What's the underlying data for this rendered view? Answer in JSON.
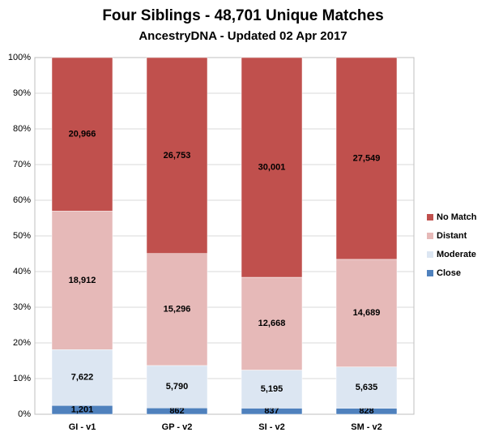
{
  "chart_data": {
    "type": "stacked_percent_bar",
    "title": "Four Siblings -  48,701 Unique Matches",
    "subtitle": "AncestryDNA - Updated 02 Apr 2017",
    "categories": [
      "GI - v1",
      "GP - v2",
      "SI - v2",
      "SM - v2"
    ],
    "series": [
      {
        "name": "Close",
        "color": "#4f81bd",
        "values": [
          1201,
          862,
          837,
          828
        ],
        "value_labels": [
          "1,201",
          "862",
          "837",
          "828"
        ]
      },
      {
        "name": "Moderate",
        "color": "#dce6f2",
        "values": [
          7622,
          5790,
          5195,
          5635
        ],
        "value_labels": [
          "7,622",
          "5,790",
          "5,195",
          "5,635"
        ]
      },
      {
        "name": "Distant",
        "color": "#e6b9b8",
        "values": [
          18912,
          15296,
          12668,
          14689
        ],
        "value_labels": [
          "18,912",
          "15,296",
          "12,668",
          "14,689"
        ]
      },
      {
        "name": "No Match",
        "color": "#c0504d",
        "values": [
          20966,
          26753,
          30001,
          27549
        ],
        "value_labels": [
          "20,966",
          "26,753",
          "30,001",
          "27,549"
        ]
      }
    ],
    "ylim": [
      0,
      100
    ],
    "yticks": [
      {
        "value": 0,
        "label": "0%"
      },
      {
        "value": 10,
        "label": "10%"
      },
      {
        "value": 20,
        "label": "20%"
      },
      {
        "value": 30,
        "label": "30%"
      },
      {
        "value": 40,
        "label": "40%"
      },
      {
        "value": 50,
        "label": "50%"
      },
      {
        "value": 60,
        "label": "60%"
      },
      {
        "value": 70,
        "label": "70%"
      },
      {
        "value": 80,
        "label": "80%"
      },
      {
        "value": 90,
        "label": "90%"
      },
      {
        "value": 100,
        "label": "100%"
      }
    ],
    "grid": true,
    "legend": "right"
  }
}
